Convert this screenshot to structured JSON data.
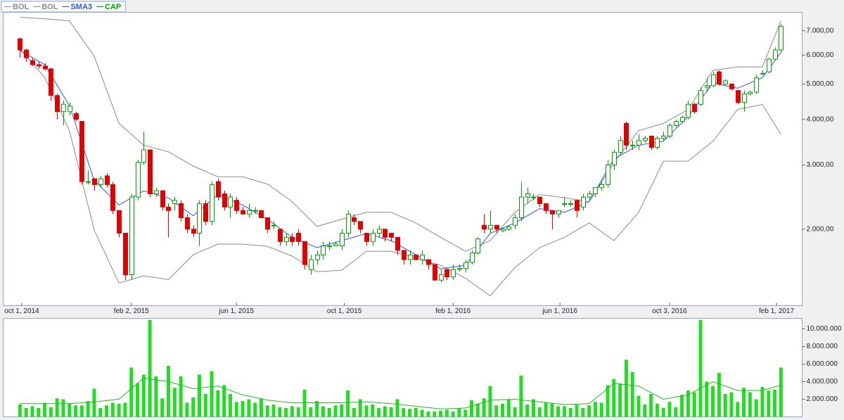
{
  "chart_data": [
    {
      "type": "candlestick",
      "name": "CAP",
      "up_color": "#00a000",
      "down_color": "#e00000",
      "log": true,
      "legend": "top-left",
      "xlim": [
        "2014-09-10",
        "2017-03-02"
      ],
      "xticks": [
        {
          "value": "2014-10-01",
          "label": "oct 1, 2014"
        },
        {
          "value": "2015-02-02",
          "label": "feb 2, 2015"
        },
        {
          "value": "2015-06-01",
          "label": "jun 1, 2015"
        },
        {
          "value": "2015-10-01",
          "label": "oct 1, 2015"
        },
        {
          "value": "2016-02-01",
          "label": "feb 1, 2016"
        },
        {
          "value": "2016-06-01",
          "label": "jun 1, 2016"
        },
        {
          "value": "2016-10-03",
          "label": "oct 3, 2016"
        },
        {
          "value": "2017-02-01",
          "label": "feb 1, 2017"
        }
      ],
      "ylim": [
        1234,
        7863
      ],
      "yticks": [
        {
          "value": 2000,
          "label": "2.000,00"
        },
        {
          "value": 3000,
          "label": "3.000,00"
        },
        {
          "value": 4000,
          "label": "4.000,00"
        },
        {
          "value": 5000,
          "label": "5.000,00"
        },
        {
          "value": 6000,
          "label": "6.000,00"
        },
        {
          "value": 7000,
          "label": "7.000,00"
        }
      ],
      "x": [
        "2014-09-29",
        "2014-10-06",
        "2014-10-13",
        "2014-10-20",
        "2014-10-27",
        "2014-11-03",
        "2014-11-10",
        "2014-11-17",
        "2014-11-24",
        "2014-12-01",
        "2014-12-08",
        "2014-12-15",
        "2014-12-22",
        "2014-12-29",
        "2015-01-05",
        "2015-01-12",
        "2015-01-19",
        "2015-01-26",
        "2015-02-02",
        "2015-02-09",
        "2015-02-16",
        "2015-02-23",
        "2015-03-02",
        "2015-03-09",
        "2015-03-16",
        "2015-03-23",
        "2015-03-30",
        "2015-04-06",
        "2015-04-13",
        "2015-04-20",
        "2015-04-27",
        "2015-05-04",
        "2015-05-11",
        "2015-05-18",
        "2015-05-25",
        "2015-06-01",
        "2015-06-08",
        "2015-06-15",
        "2015-06-22",
        "2015-06-29",
        "2015-07-06",
        "2015-07-13",
        "2015-07-20",
        "2015-07-27",
        "2015-08-03",
        "2015-08-10",
        "2015-08-17",
        "2015-08-24",
        "2015-08-31",
        "2015-09-07",
        "2015-09-14",
        "2015-09-21",
        "2015-09-28",
        "2015-10-05",
        "2015-10-12",
        "2015-10-19",
        "2015-10-26",
        "2015-11-02",
        "2015-11-09",
        "2015-11-16",
        "2015-11-23",
        "2015-11-30",
        "2015-12-07",
        "2015-12-14",
        "2015-12-21",
        "2015-12-28",
        "2016-01-04",
        "2016-01-11",
        "2016-01-18",
        "2016-01-25",
        "2016-02-01",
        "2016-02-08",
        "2016-02-15",
        "2016-02-22",
        "2016-02-29",
        "2016-03-07",
        "2016-03-14",
        "2016-03-21",
        "2016-03-28",
        "2016-04-04",
        "2016-04-11",
        "2016-04-18",
        "2016-04-25",
        "2016-05-02",
        "2016-05-09",
        "2016-05-16",
        "2016-05-23",
        "2016-05-30",
        "2016-06-06",
        "2016-06-13",
        "2016-06-20",
        "2016-06-27",
        "2016-07-04",
        "2016-07-11",
        "2016-07-18",
        "2016-07-25",
        "2016-08-01",
        "2016-08-08",
        "2016-08-15",
        "2016-08-22",
        "2016-08-29",
        "2016-09-05",
        "2016-09-12",
        "2016-09-19",
        "2016-09-26",
        "2016-10-03",
        "2016-10-10",
        "2016-10-17",
        "2016-10-24",
        "2016-10-31",
        "2016-11-07",
        "2016-11-14",
        "2016-11-21",
        "2016-11-28",
        "2016-12-05",
        "2016-12-12",
        "2016-12-19",
        "2016-12-26",
        "2017-01-02",
        "2017-01-09",
        "2017-01-16",
        "2017-01-23",
        "2017-01-30",
        "2017-02-06"
      ],
      "open": [
        6650,
        6200,
        5800,
        5650,
        5600,
        5500,
        4650,
        4200,
        4200,
        4150,
        3950,
        2700,
        2750,
        2650,
        2800,
        2650,
        2250,
        1950,
        1500,
        2450,
        3050,
        3300,
        2500,
        2550,
        2300,
        2350,
        2350,
        2150,
        2000,
        1950,
        2350,
        2100,
        2700,
        2500,
        2300,
        2400,
        2250,
        2200,
        2250,
        2250,
        2150,
        2050,
        2000,
        1850,
        1900,
        1950,
        1850,
        1550,
        1650,
        1700,
        1800,
        1800,
        1800,
        1950,
        2150,
        2100,
        1950,
        1850,
        1950,
        2000,
        1950,
        1900,
        1750,
        1650,
        1700,
        1650,
        1650,
        1600,
        1450,
        1550,
        1480,
        1550,
        1560,
        1620,
        1720,
        2050,
        2000,
        2050,
        1980,
        2000,
        2050,
        2150,
        2450,
        2450,
        2450,
        2350,
        2250,
        2200,
        2350,
        2350,
        2400,
        2300,
        2450,
        2500,
        2600,
        2650,
        3000,
        3250,
        3900,
        3400,
        3400,
        3500,
        3600,
        3350,
        3550,
        3600,
        3850,
        3950,
        4050,
        4400,
        4400,
        4900,
        4950,
        5400,
        5000,
        5000,
        4800,
        4450,
        4700,
        4750,
        5350,
        5400,
        5850,
        6200
      ],
      "high": [
        6700,
        6250,
        5900,
        5750,
        5700,
        5550,
        4700,
        4500,
        4450,
        4200,
        3950,
        2900,
        2750,
        2800,
        2850,
        2700,
        2250,
        1950,
        2500,
        3100,
        3700,
        3300,
        2600,
        2550,
        2350,
        2450,
        2400,
        2200,
        2050,
        2400,
        2400,
        2700,
        2750,
        2550,
        2500,
        2450,
        2300,
        2350,
        2300,
        2250,
        2150,
        2100,
        2000,
        1950,
        1950,
        2000,
        1850,
        1700,
        1750,
        1850,
        1850,
        1850,
        2000,
        2250,
        2200,
        2100,
        1950,
        2000,
        2050,
        2000,
        1950,
        1900,
        1750,
        1750,
        1700,
        1750,
        1650,
        1600,
        1550,
        1550,
        1600,
        1600,
        1650,
        1750,
        1900,
        2200,
        2250,
        2050,
        2020,
        2050,
        2200,
        2700,
        2600,
        2500,
        2450,
        2350,
        2250,
        2250,
        2450,
        2400,
        2400,
        2500,
        2550,
        2600,
        2700,
        3100,
        3300,
        3600,
        3950,
        3500,
        3650,
        3600,
        3600,
        3600,
        3700,
        3900,
        4000,
        4100,
        4500,
        4450,
        4900,
        5200,
        5400,
        5450,
        5150,
        5000,
        4800,
        4800,
        4800,
        5300,
        5450,
        5900,
        6300,
        7300
      ],
      "low": [
        5900,
        5750,
        5600,
        5500,
        5450,
        4500,
        4000,
        3850,
        4100,
        3950,
        2650,
        2650,
        2550,
        2600,
        2600,
        2200,
        1900,
        1450,
        1450,
        2400,
        3000,
        2450,
        2450,
        2250,
        1900,
        2250,
        2100,
        1950,
        1900,
        1800,
        2050,
        2050,
        2400,
        2250,
        2150,
        2200,
        2200,
        2150,
        2200,
        2150,
        1950,
        2000,
        1800,
        1800,
        1800,
        1800,
        1550,
        1500,
        1600,
        1650,
        1750,
        1800,
        1750,
        1900,
        2050,
        1950,
        1800,
        1800,
        1900,
        1850,
        1850,
        1700,
        1600,
        1600,
        1650,
        1600,
        1550,
        1450,
        1430,
        1450,
        1450,
        1530,
        1520,
        1600,
        1700,
        1950,
        1950,
        1950,
        1960,
        1980,
        2000,
        2100,
        2350,
        2400,
        2300,
        2200,
        2000,
        2150,
        2300,
        2300,
        2150,
        2250,
        2400,
        2450,
        2550,
        2600,
        2900,
        3200,
        3300,
        3300,
        3300,
        3450,
        3300,
        3300,
        3500,
        3550,
        3800,
        3900,
        4000,
        4150,
        4350,
        4750,
        4900,
        4950,
        4950,
        4800,
        4400,
        4200,
        4650,
        4700,
        5300,
        5350,
        5800,
        6100
      ],
      "close": [
        6200,
        5900,
        5650,
        5600,
        5500,
        4650,
        4200,
        4400,
        4350,
        4000,
        2700,
        2700,
        2650,
        2750,
        2650,
        2250,
        1950,
        1500,
        2450,
        3050,
        3300,
        2500,
        2550,
        2300,
        2250,
        2400,
        2150,
        2000,
        1950,
        2350,
        2100,
        2650,
        2450,
        2300,
        2450,
        2250,
        2200,
        2250,
        2250,
        2150,
        2000,
        2050,
        1850,
        1900,
        1850,
        1850,
        1600,
        1650,
        1700,
        1800,
        1800,
        1820,
        1950,
        2200,
        2100,
        2000,
        1850,
        1950,
        2000,
        1900,
        1900,
        1750,
        1650,
        1700,
        1650,
        1700,
        1600,
        1450,
        1500,
        1480,
        1550,
        1560,
        1620,
        1720,
        1880,
        2000,
        2050,
        2000,
        2000,
        2030,
        2150,
        2450,
        2500,
        2450,
        2350,
        2250,
        2200,
        2250,
        2350,
        2350,
        2250,
        2450,
        2500,
        2600,
        2650,
        3000,
        3250,
        3500,
        3400,
        3400,
        3500,
        3550,
        3350,
        3550,
        3600,
        3850,
        3950,
        4050,
        4400,
        4200,
        4800,
        4950,
        5300,
        5000,
        5100,
        4850,
        4450,
        4700,
        4750,
        5200,
        5350,
        5850,
        6200,
        7200
      ],
      "line_x": [
        "2014-09-29",
        "2014-10-27",
        "2014-11-24",
        "2014-12-22",
        "2015-01-19",
        "2015-02-16",
        "2015-03-16",
        "2015-04-13",
        "2015-05-11",
        "2015-06-08",
        "2015-07-06",
        "2015-08-03",
        "2015-08-31",
        "2015-09-28",
        "2015-10-26",
        "2015-11-23",
        "2015-12-21",
        "2016-01-18",
        "2016-02-15",
        "2016-03-14",
        "2016-04-11",
        "2016-05-09",
        "2016-06-06",
        "2016-07-04",
        "2016-08-01",
        "2016-08-29",
        "2016-09-26",
        "2016-10-24",
        "2016-11-21",
        "2016-12-19",
        "2017-01-16",
        "2017-02-06"
      ],
      "lines": [
        {
          "name": "BOL",
          "color": "#8a8a8a",
          "values": [
            7620,
            7550,
            7450,
            5960,
            3900,
            3400,
            3260,
            2980,
            2785,
            2785,
            2660,
            2380,
            2035,
            2130,
            2225,
            2225,
            2080,
            1900,
            1740,
            1860,
            2225,
            2490,
            2440,
            2380,
            3045,
            3725,
            3900,
            4260,
            5450,
            5570,
            5570,
            7450
          ]
        },
        {
          "name": "BOL",
          "color": "#8a8a8a",
          "values": [
            6230,
            5210,
            3725,
            1990,
            1424,
            1490,
            1455,
            1702,
            1820,
            1820,
            1795,
            1688,
            1530,
            1543,
            1740,
            1740,
            1665,
            1592,
            1468,
            1314,
            1570,
            1780,
            1900,
            2080,
            1860,
            2225,
            3073,
            3073,
            3485,
            4260,
            4395,
            3640
          ]
        },
        {
          "name": "SMA3",
          "color": "#2b55e6",
          "values": [
            6180,
            5650,
            4360,
            2724,
            2330,
            2546,
            2436,
            2177,
            2490,
            2330,
            2130,
            1900,
            1780,
            1860,
            1947,
            1860,
            1702,
            1557,
            1592,
            1947,
            2080,
            2278,
            2225,
            2380,
            3115,
            3400,
            3485,
            4073,
            5030,
            4870,
            5210,
            6094
          ]
        }
      ]
    },
    {
      "type": "bar",
      "color": "#22dd22",
      "line_color": "#22b822",
      "ylim": [
        0,
        11200000
      ],
      "yticks": [
        {
          "value": 2000000,
          "label": "2.000.000"
        },
        {
          "value": 4000000,
          "label": "4.000.000"
        },
        {
          "value": 6000000,
          "label": "6.000.000"
        },
        {
          "value": 8000000,
          "label": "8.000.000"
        },
        {
          "value": 10000000,
          "label": "10.000.000"
        }
      ],
      "values": [
        1400000,
        1000000,
        1200000,
        1000000,
        1600000,
        1100000,
        2100000,
        2000000,
        1500000,
        1300000,
        1300000,
        1800000,
        3200000,
        1000000,
        1300000,
        1600000,
        1500000,
        1600000,
        5600000,
        3800000,
        4800000,
        11000000,
        4600000,
        2100000,
        5800000,
        3300000,
        4600000,
        1600000,
        2200000,
        4800000,
        2600000,
        5200000,
        3000000,
        3600000,
        2600000,
        1700000,
        1800000,
        2000000,
        1600000,
        2100000,
        1300000,
        1400000,
        1100000,
        1000000,
        1200000,
        1100000,
        3100000,
        1100000,
        1800000,
        1200000,
        1000000,
        1300000,
        1400000,
        3000000,
        1000000,
        2000000,
        1300000,
        1400000,
        1000000,
        1200000,
        1100000,
        2000000,
        1000000,
        900000,
        1000000,
        800000,
        600000,
        600000,
        700000,
        800000,
        600000,
        1000000,
        800000,
        1900000,
        1500000,
        2100000,
        3500000,
        1300000,
        1500000,
        2000000,
        1100000,
        4700000,
        1400000,
        2000000,
        1100000,
        1600000,
        1500000,
        1200000,
        1200000,
        1000000,
        1400000,
        1000000,
        1300000,
        1700000,
        1600000,
        3600000,
        4300000,
        3800000,
        6500000,
        5100000,
        2400000,
        1400000,
        2600000,
        1500000,
        1000000,
        1700000,
        1100000,
        2500000,
        3000000,
        2800000,
        11000000,
        4000000,
        3500000,
        5000000,
        2600000,
        2800000,
        1700000,
        3300000,
        2800000,
        2000000,
        3400000,
        3000000,
        3100000,
        5600000
      ],
      "line_values": [
        1500000,
        1500000,
        1500000,
        1700000,
        2000000,
        4400000,
        4000000,
        3200000,
        3500000,
        2500000,
        1900000,
        1600000,
        1600000,
        1600000,
        1700000,
        1500000,
        1200000,
        900000,
        1000000,
        1900000,
        2000000,
        1700000,
        1400000,
        1500000,
        3800000,
        3500000,
        2000000,
        2500000,
        4000000,
        3000000,
        3000000,
        3600000
      ]
    }
  ]
}
